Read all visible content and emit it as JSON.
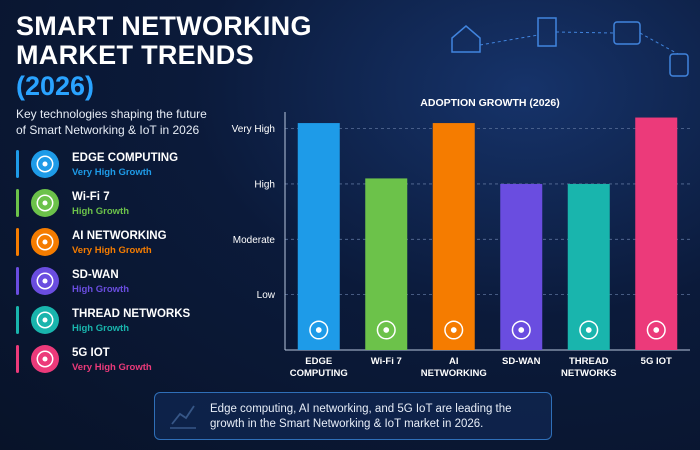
{
  "header": {
    "title": "SMART NETWORKING MARKET TRENDS",
    "year": "(2026)",
    "subtitle": "Key technologies shaping the future of Smart Networking & IoT in 2026"
  },
  "technologies": [
    {
      "name": "EDGE COMPUTING",
      "growth": "Very High Growth",
      "color": "#1e9be8"
    },
    {
      "name": "Wi-Fi 7",
      "growth": "High Growth",
      "color": "#6cc24a"
    },
    {
      "name": "AI NETWORKING",
      "growth": "Very High Growth",
      "color": "#f57c00"
    },
    {
      "name": "SD-WAN",
      "growth": "High Growth",
      "color": "#6a4de0"
    },
    {
      "name": "THREAD NETWORKS",
      "growth": "High Growth",
      "color": "#19b5ad"
    },
    {
      "name": "5G IOT",
      "growth": "Very High Growth",
      "color": "#ec3a7a"
    }
  ],
  "chart_data": {
    "type": "bar",
    "title": "ADOPTION GROWTH (2026)",
    "categories": [
      "EDGE COMPUTING",
      "Wi-Fi 7",
      "AI NETWORKING",
      "SD-WAN",
      "THREAD NETWORKS",
      "5G IOT"
    ],
    "values": [
      4.1,
      3.1,
      4.1,
      3.0,
      3.0,
      4.2
    ],
    "colors": [
      "#1e9be8",
      "#6cc24a",
      "#f57c00",
      "#6a4de0",
      "#19b5ad",
      "#ec3a7a"
    ],
    "ylim": [
      0,
      4.3
    ],
    "yticks": [
      {
        "value": 1,
        "label": "Low"
      },
      {
        "value": 2,
        "label": "Moderate"
      },
      {
        "value": 3,
        "label": "High"
      },
      {
        "value": 4,
        "label": "Very High"
      }
    ],
    "grid": true
  },
  "footer": {
    "note": "Edge computing, AI networking, and 5G IoT are leading the growth in the Smart Networking & IoT market in 2026."
  }
}
